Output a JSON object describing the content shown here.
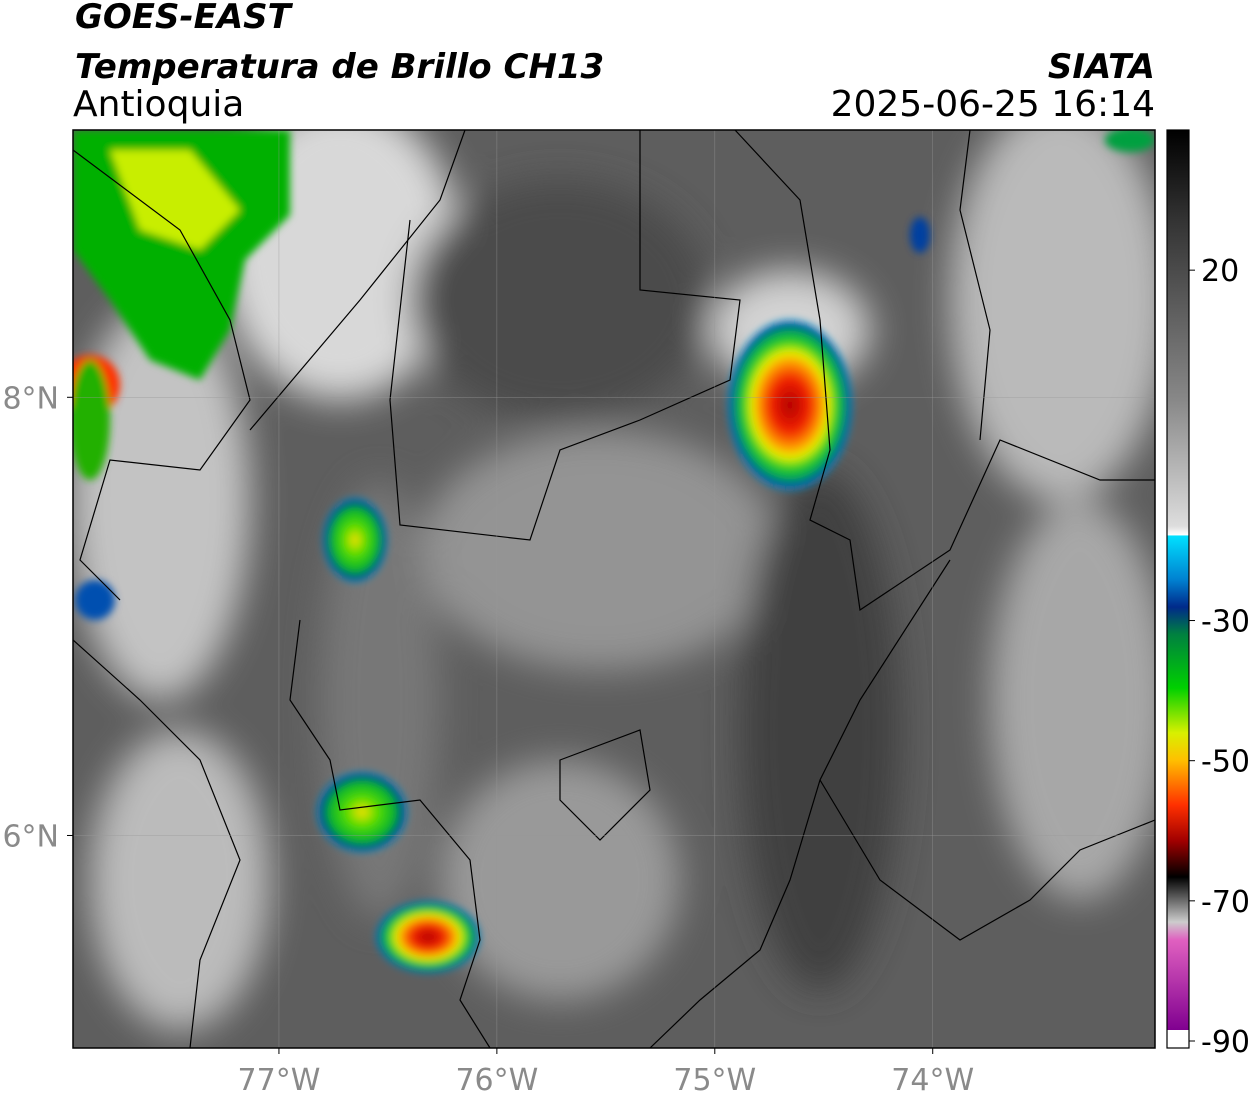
{
  "header": {
    "title": "GOES-EAST",
    "subtitle": "Temperatura de Brillo CH13",
    "region": "Antioquia",
    "agency": "SIATA",
    "datetime": "2025-06-25 16:14"
  },
  "map": {
    "xlim": [
      -77.945,
      -72.98
    ],
    "ylim": [
      5.03,
      9.22
    ],
    "xticks": [
      {
        "value": -77,
        "label": "77°W"
      },
      {
        "value": -76,
        "label": "76°W"
      },
      {
        "value": -75,
        "label": "75°W"
      },
      {
        "value": -74,
        "label": "74°W"
      }
    ],
    "yticks": [
      {
        "value": 6,
        "label": "6°N"
      },
      {
        "value": 8,
        "label": "8°N"
      }
    ]
  },
  "colorbar": {
    "lim": [
      -91,
      40
    ],
    "ticks": [
      20,
      -30,
      -50,
      -70,
      -90
    ]
  }
}
